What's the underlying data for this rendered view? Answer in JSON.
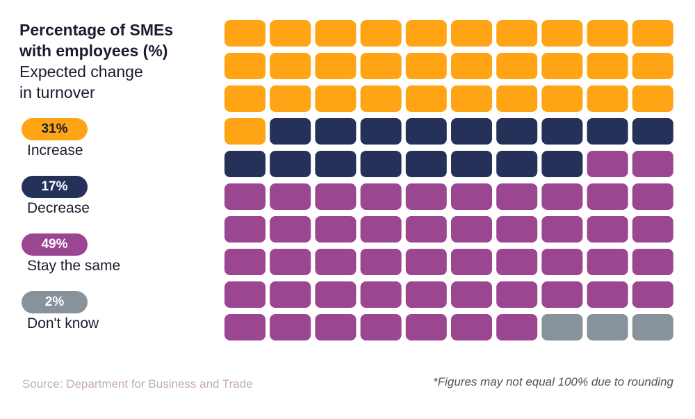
{
  "chart_data": {
    "type": "waffle",
    "title": "Percentage of SMEs with employees (%)",
    "subtitle": "Expected change in turnover",
    "grid": {
      "rows": 10,
      "cols": 10
    },
    "series": [
      {
        "name": "Increase",
        "value": 31,
        "label": "31%",
        "color": "#ffa414",
        "text_color": "#1b1b2e"
      },
      {
        "name": "Decrease",
        "value": 17,
        "label": "17%",
        "color": "#263159",
        "text_color": "#ffffff"
      },
      {
        "name": "Stay the same",
        "value": 49,
        "label": "49%",
        "color": "#9b4690",
        "text_color": "#ffffff"
      },
      {
        "name": "Don't know",
        "value": 2,
        "label": "2%",
        "color": "#87929b",
        "text_color": "#ffffff"
      }
    ]
  },
  "header": {
    "title_line1": "Percentage of SMEs",
    "title_line2": "with employees (%)",
    "subtitle_line1": "Expected change",
    "subtitle_line2": "in turnover"
  },
  "footer": {
    "source": "Source: Department for Business and Trade",
    "note": "*Figures may not equal 100% due to rounding"
  }
}
